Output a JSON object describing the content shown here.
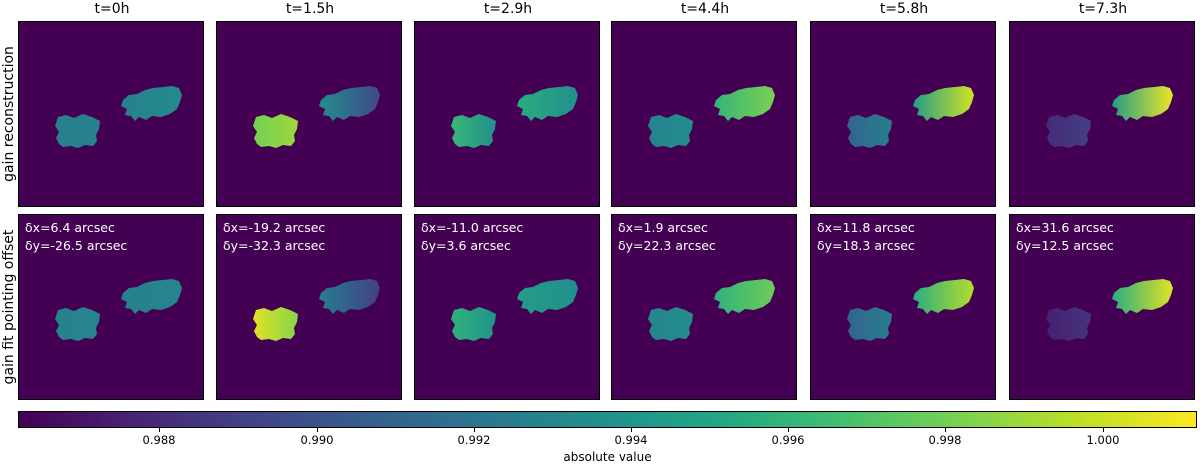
{
  "chart_data": {
    "type": "heatmap",
    "columns": [
      "t=0h",
      "t=1.5h",
      "t=2.9h",
      "t=4.4h",
      "t=5.8h",
      "t=7.3h"
    ],
    "rows": [
      "gain reconstruction",
      "gain fit pointing offset"
    ],
    "pointing_offsets": [
      {
        "dx": "δx=6.4 arcsec",
        "dy": "δy=-26.5 arcsec"
      },
      {
        "dx": "δx=-19.2 arcsec",
        "dy": "δy=-32.3 arcsec"
      },
      {
        "dx": "δx=-11.0 arcsec",
        "dy": "δy=3.6 arcsec"
      },
      {
        "dx": "δx=1.9 arcsec",
        "dy": "δy=22.3 arcsec"
      },
      {
        "dx": "δx=11.8 arcsec",
        "dy": "δy=18.3 arcsec"
      },
      {
        "dx": "δx=31.6 arcsec",
        "dy": "δy=12.5 arcsec"
      }
    ],
    "blob_values_estimated": {
      "gain_reconstruction": [
        {
          "left": [
            0.9926,
            0.9928
          ],
          "right": [
            0.9928,
            0.9932
          ]
        },
        {
          "left": [
            0.998,
            0.999
          ],
          "right": [
            0.9935,
            0.9895
          ]
        },
        {
          "left": [
            0.9962,
            0.9935
          ],
          "right": [
            0.9955,
            0.9935
          ]
        },
        {
          "left": [
            0.9928,
            0.9935
          ],
          "right": [
            0.996,
            0.9982
          ]
        },
        {
          "left": [
            0.991,
            0.9925
          ],
          "right": [
            0.9945,
            1.0002
          ]
        },
        {
          "left": [
            0.988,
            0.989
          ],
          "right": [
            0.9945,
            1.0008
          ]
        }
      ],
      "gain_fit_pointing_offset": [
        {
          "left": [
            0.9928,
            0.993
          ],
          "right": [
            0.9928,
            0.993
          ]
        },
        {
          "left": [
            1.0005,
            0.9985
          ],
          "right": [
            0.9925,
            0.989
          ]
        },
        {
          "left": [
            0.9958,
            0.9938
          ],
          "right": [
            0.9945,
            0.9935
          ]
        },
        {
          "left": [
            0.993,
            0.9935
          ],
          "right": [
            0.9958,
            0.9978
          ]
        },
        {
          "left": [
            0.991,
            0.9925
          ],
          "right": [
            0.9955,
            0.9995
          ]
        },
        {
          "left": [
            0.9875,
            0.9885
          ],
          "right": [
            0.9955,
            1.0005
          ]
        }
      ]
    },
    "colorbar": {
      "label": "absolute value",
      "range": [
        0.9862,
        1.0012
      ],
      "ticks": [
        0.988,
        0.99,
        0.992,
        0.994,
        0.996,
        0.998,
        1.0
      ],
      "tick_labels": [
        "0.988",
        "0.990",
        "0.992",
        "0.994",
        "0.996",
        "0.998",
        "1.000"
      ],
      "colormap": "viridis",
      "background": "#440154"
    }
  }
}
